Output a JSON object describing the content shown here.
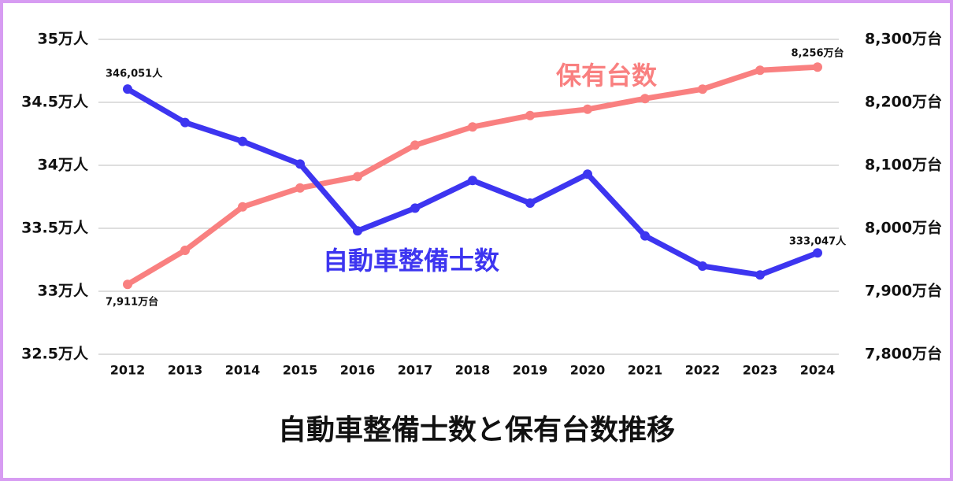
{
  "chart_data": {
    "type": "line",
    "title": "自動車整備士数と保有台数推移",
    "categories": [
      "2012",
      "2013",
      "2014",
      "2015",
      "2016",
      "2017",
      "2018",
      "2019",
      "2020",
      "2021",
      "2022",
      "2023",
      "2024"
    ],
    "ylim": [
      32.5,
      35
    ],
    "yticks": [
      {
        "value": 32.5,
        "label": "32.5万人"
      },
      {
        "value": 33,
        "label": "33万人"
      },
      {
        "value": 33.5,
        "label": "33.5万人"
      },
      {
        "value": 34,
        "label": "34万人"
      },
      {
        "value": 34.5,
        "label": "34.5万人"
      },
      {
        "value": 35,
        "label": "35万人"
      }
    ],
    "y2lim": [
      7800,
      8300
    ],
    "y2ticks": [
      {
        "value": 7800,
        "label": "7,800万台"
      },
      {
        "value": 7900,
        "label": "7,900万台"
      },
      {
        "value": 8000,
        "label": "8,000万台"
      },
      {
        "value": 8100,
        "label": "8,100万台"
      },
      {
        "value": 8200,
        "label": "8,200万台"
      },
      {
        "value": 8300,
        "label": "8,300万台"
      }
    ],
    "grid": true,
    "series": [
      {
        "name": "自動車整備士数",
        "color": "#3d35f0",
        "values": [
          34.6051,
          34.34,
          34.19,
          34.01,
          33.48,
          33.66,
          33.88,
          33.7,
          33.93,
          33.44,
          33.2,
          33.13,
          33.3047
        ],
        "value_labels": [
          "346,051人",
          null,
          null,
          null,
          null,
          null,
          null,
          null,
          null,
          null,
          null,
          null,
          "333,047人"
        ]
      },
      {
        "name": "保有台数",
        "color": "#f98080",
        "axis": "y2",
        "values": [
          7911,
          7965,
          8034,
          8064,
          8082,
          8132,
          8161,
          8179,
          8189,
          8206,
          8221,
          8251,
          8256
        ],
        "value_labels": [
          "7,911万台",
          null,
          null,
          null,
          null,
          null,
          null,
          null,
          null,
          null,
          null,
          null,
          "8,256万台"
        ]
      }
    ]
  }
}
